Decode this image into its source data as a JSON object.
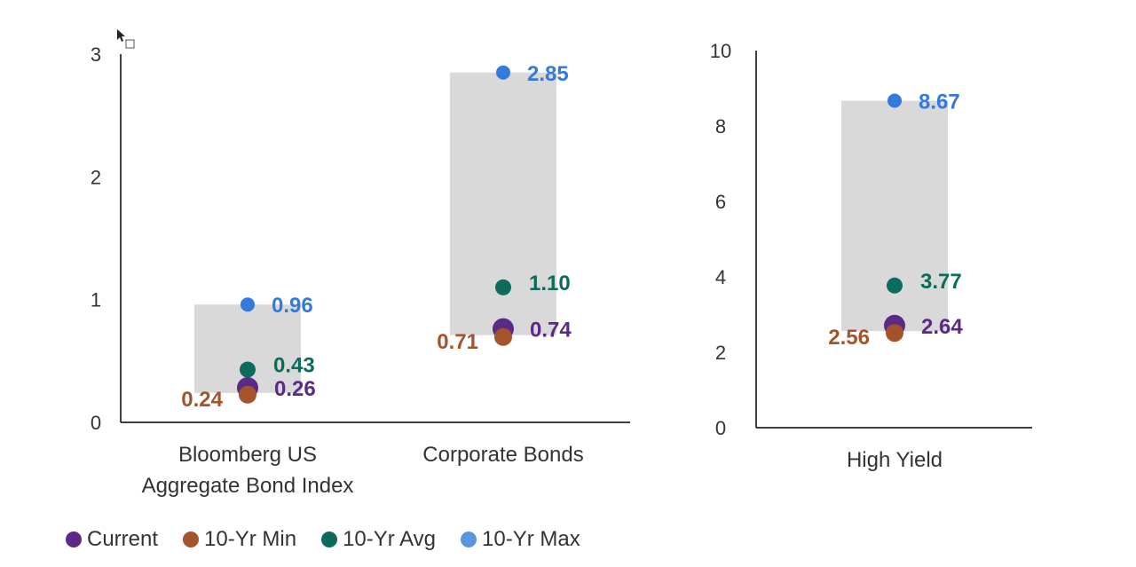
{
  "chart_data": [
    {
      "type": "scatter",
      "ylim": [
        0,
        3
      ],
      "yticks": [
        "0",
        "1",
        "2",
        "3"
      ],
      "categories": [
        "Bloomberg US\nAggregate Bond Index",
        "Corporate Bonds"
      ],
      "ranges": [
        [
          0.24,
          0.96
        ],
        [
          0.71,
          2.85
        ]
      ],
      "series": [
        {
          "name": "Current",
          "values": [
            0.26,
            0.74
          ],
          "labels": [
            "0.26",
            "0.74"
          ]
        },
        {
          "name": "10-Yr Min",
          "values": [
            0.24,
            0.71
          ],
          "labels": [
            "0.24",
            "0.71"
          ]
        },
        {
          "name": "10-Yr Avg",
          "values": [
            0.43,
            1.1
          ],
          "labels": [
            "0.43",
            "1.10"
          ]
        },
        {
          "name": "10-Yr Max",
          "values": [
            0.96,
            2.85
          ],
          "labels": [
            "0.96",
            "2.85"
          ]
        }
      ]
    },
    {
      "type": "scatter",
      "ylim": [
        0,
        10
      ],
      "yticks": [
        "0",
        "2",
        "4",
        "6",
        "8",
        "10"
      ],
      "categories": [
        "High Yield"
      ],
      "ranges": [
        [
          2.56,
          8.67
        ]
      ],
      "series": [
        {
          "name": "Current",
          "values": [
            2.64
          ],
          "labels": [
            "2.64"
          ]
        },
        {
          "name": "10-Yr Min",
          "values": [
            2.56
          ],
          "labels": [
            "2.56"
          ]
        },
        {
          "name": "10-Yr Avg",
          "values": [
            3.77
          ],
          "labels": [
            "3.77"
          ]
        },
        {
          "name": "10-Yr Max",
          "values": [
            8.67
          ],
          "labels": [
            "8.67"
          ]
        }
      ]
    }
  ],
  "legend": [
    {
      "label": "Current",
      "color": "#5b2a86"
    },
    {
      "label": "10-Yr Min",
      "color": "#a4532b"
    },
    {
      "label": "10-Yr Avg",
      "color": "#0d6b5b"
    },
    {
      "label": "10-Yr Max",
      "color": "#5b95e0"
    }
  ],
  "colors": {
    "current": "#5b2a86",
    "min": "#a4532b",
    "avg": "#0d6b5b",
    "max": "#3579dc",
    "range_fill": "#d9d9d9",
    "axis": "#000000",
    "tick_text": "#333333"
  },
  "icons": {
    "cursor": "mouse-pointer-icon"
  }
}
